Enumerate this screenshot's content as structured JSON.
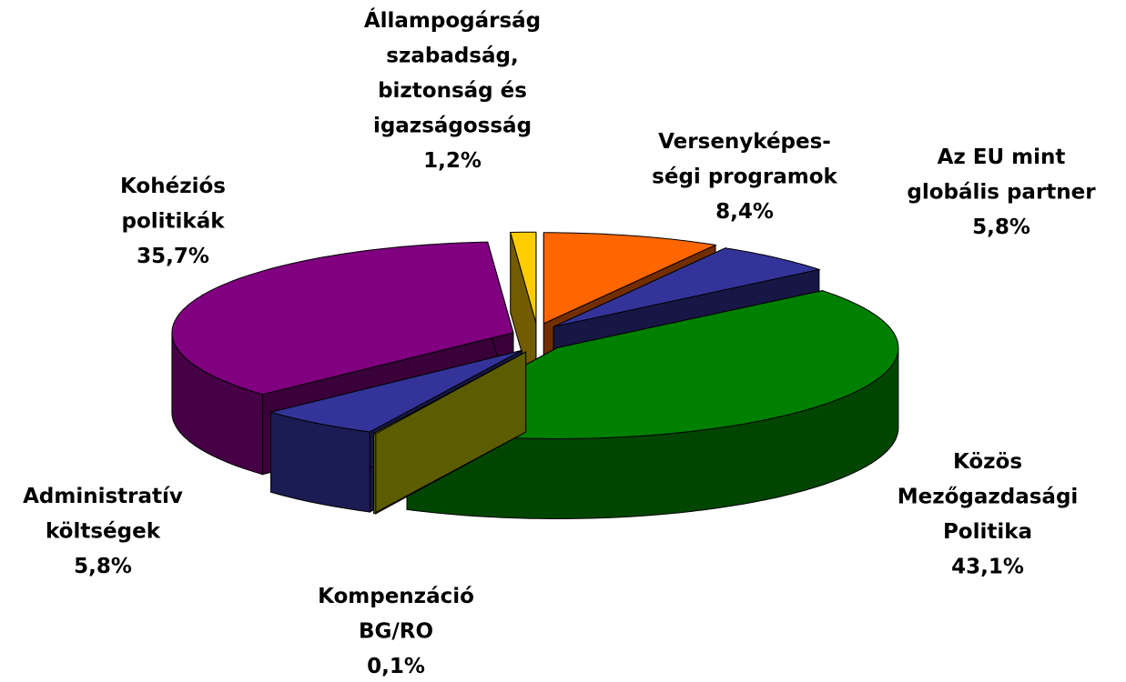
{
  "chart_data": {
    "type": "pie3d",
    "labels": [
      [
        "Versenyképes-",
        "ségi programok"
      ],
      [
        "Az EU mint",
        "globális partner"
      ],
      [
        "Közös",
        "Mezőgazdasági",
        "Politika"
      ],
      [
        "Kompenzáció",
        "BG/RO"
      ],
      [
        "Administratív",
        "költségek"
      ],
      [
        "Kohéziós",
        "politikák"
      ],
      [
        "Állampogárság",
        "szabadság,",
        "biztonság és",
        "igazságosság"
      ]
    ],
    "values": [
      8.4,
      5.8,
      43.1,
      0.1,
      5.8,
      35.7,
      1.2
    ],
    "value_labels": [
      "8,4%",
      "5,8%",
      "43,1%",
      "0,1%",
      "5,8%",
      "35,7%",
      "1,2%"
    ],
    "colors": [
      "#ff6600",
      "#333399",
      "#008000",
      "#cccc00",
      "#333399",
      "#800080",
      "#ffcc00"
    ]
  }
}
